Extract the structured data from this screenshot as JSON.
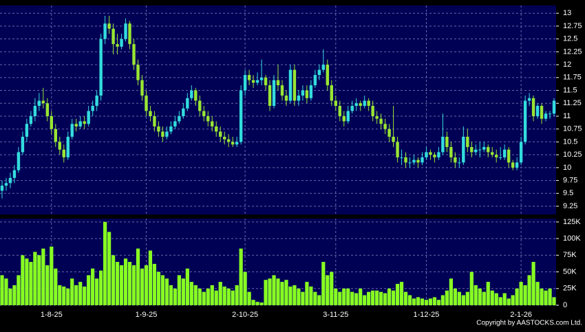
{
  "chart_data": [
    {
      "type": "candlestick",
      "up_color": "#33dddd",
      "down_color": "#99e633",
      "grid": true,
      "ylim": [
        9.09,
        13.15
      ],
      "yticks": [
        9.25,
        9.5,
        9.75,
        10,
        10.25,
        10.5,
        10.75,
        11,
        11.25,
        11.5,
        11.75,
        12,
        12.25,
        12.5,
        12.75,
        13
      ],
      "candles": [
        [
          9.55,
          9.75,
          9.4,
          9.65
        ],
        [
          9.65,
          9.8,
          9.55,
          9.7
        ],
        [
          9.7,
          9.9,
          9.6,
          9.8
        ],
        [
          9.8,
          10.05,
          9.7,
          9.95
        ],
        [
          9.95,
          10.4,
          9.9,
          10.3
        ],
        [
          10.3,
          10.7,
          10.25,
          10.6
        ],
        [
          10.6,
          10.95,
          10.5,
          10.85
        ],
        [
          10.85,
          11.1,
          10.8,
          11.0
        ],
        [
          11.0,
          11.35,
          10.9,
          11.2
        ],
        [
          11.2,
          11.45,
          11.1,
          11.3
        ],
        [
          11.3,
          11.55,
          11.15,
          11.25
        ],
        [
          11.25,
          11.35,
          10.9,
          11.0
        ],
        [
          11.0,
          11.1,
          10.65,
          10.75
        ],
        [
          10.75,
          10.85,
          10.4,
          10.5
        ],
        [
          10.5,
          10.6,
          10.25,
          10.35
        ],
        [
          10.35,
          10.45,
          10.1,
          10.2
        ],
        [
          10.2,
          10.7,
          10.15,
          10.6
        ],
        [
          10.6,
          10.95,
          10.55,
          10.85
        ],
        [
          10.85,
          10.95,
          10.7,
          10.8
        ],
        [
          10.8,
          11.0,
          10.75,
          10.9
        ],
        [
          10.9,
          11.0,
          10.75,
          10.85
        ],
        [
          10.85,
          11.2,
          10.8,
          11.1
        ],
        [
          11.1,
          11.3,
          11.0,
          11.2
        ],
        [
          11.2,
          11.5,
          11.1,
          11.4
        ],
        [
          11.4,
          12.6,
          11.3,
          12.5
        ],
        [
          12.5,
          12.95,
          12.4,
          12.8
        ],
        [
          12.8,
          12.95,
          12.6,
          12.7
        ],
        [
          12.7,
          12.8,
          12.2,
          12.4
        ],
        [
          12.4,
          12.6,
          12.2,
          12.35
        ],
        [
          12.35,
          12.6,
          12.3,
          12.5
        ],
        [
          12.5,
          12.9,
          12.45,
          12.8
        ],
        [
          12.8,
          12.85,
          12.3,
          12.4
        ],
        [
          12.4,
          12.5,
          11.9,
          12.0
        ],
        [
          12.0,
          12.1,
          11.6,
          11.7
        ],
        [
          11.7,
          11.8,
          11.3,
          11.4
        ],
        [
          11.4,
          11.5,
          11.0,
          11.1
        ],
        [
          11.1,
          11.2,
          10.9,
          11.0
        ],
        [
          11.0,
          11.1,
          10.7,
          10.8
        ],
        [
          10.8,
          10.9,
          10.6,
          10.7
        ],
        [
          10.7,
          10.8,
          10.5,
          10.6
        ],
        [
          10.6,
          10.8,
          10.55,
          10.7
        ],
        [
          10.7,
          10.9,
          10.65,
          10.8
        ],
        [
          10.8,
          11.0,
          10.75,
          10.9
        ],
        [
          10.9,
          11.1,
          10.85,
          11.0
        ],
        [
          11.0,
          11.25,
          10.95,
          11.15
        ],
        [
          11.15,
          11.45,
          11.1,
          11.35
        ],
        [
          11.35,
          11.6,
          11.3,
          11.5
        ],
        [
          11.5,
          11.55,
          11.2,
          11.3
        ],
        [
          11.3,
          11.4,
          11.0,
          11.1
        ],
        [
          11.1,
          11.2,
          10.9,
          11.0
        ],
        [
          11.0,
          11.1,
          10.8,
          10.9
        ],
        [
          10.9,
          11.0,
          10.7,
          10.8
        ],
        [
          10.8,
          10.9,
          10.6,
          10.7
        ],
        [
          10.7,
          10.8,
          10.5,
          10.6
        ],
        [
          10.6,
          10.7,
          10.45,
          10.55
        ],
        [
          10.55,
          10.65,
          10.4,
          10.5
        ],
        [
          10.5,
          10.6,
          10.4,
          10.45
        ],
        [
          10.45,
          10.6,
          10.4,
          10.5
        ],
        [
          10.5,
          11.6,
          10.45,
          11.5
        ],
        [
          11.5,
          11.9,
          11.4,
          11.8
        ],
        [
          11.8,
          11.9,
          11.6,
          11.7
        ],
        [
          11.7,
          11.8,
          11.55,
          11.65
        ],
        [
          11.65,
          11.85,
          11.6,
          11.7
        ],
        [
          11.7,
          12.1,
          11.6,
          11.75
        ],
        [
          11.75,
          11.8,
          11.5,
          11.6
        ],
        [
          11.6,
          11.7,
          11.1,
          11.2
        ],
        [
          11.2,
          11.8,
          11.15,
          11.7
        ],
        [
          11.7,
          12.0,
          11.5,
          11.6
        ],
        [
          11.6,
          11.7,
          11.3,
          11.4
        ],
        [
          11.4,
          11.5,
          11.2,
          11.3
        ],
        [
          11.3,
          12.0,
          11.25,
          11.9
        ],
        [
          11.9,
          12.0,
          11.2,
          11.3
        ],
        [
          11.3,
          11.5,
          11.2,
          11.4
        ],
        [
          11.4,
          11.6,
          11.3,
          11.5
        ],
        [
          11.5,
          11.6,
          11.25,
          11.35
        ],
        [
          11.35,
          11.7,
          11.3,
          11.6
        ],
        [
          11.6,
          11.9,
          11.55,
          11.8
        ],
        [
          11.8,
          12.0,
          11.7,
          11.9
        ],
        [
          11.9,
          12.3,
          11.85,
          12.0
        ],
        [
          12.0,
          12.1,
          11.5,
          11.6
        ],
        [
          11.6,
          11.7,
          11.2,
          11.3
        ],
        [
          11.3,
          11.4,
          11.1,
          11.2
        ],
        [
          11.2,
          11.3,
          10.9,
          11.0
        ],
        [
          11.0,
          11.1,
          10.8,
          10.9
        ],
        [
          10.9,
          11.2,
          10.85,
          11.1
        ],
        [
          11.1,
          11.3,
          11.05,
          11.2
        ],
        [
          11.2,
          11.35,
          11.1,
          11.25
        ],
        [
          11.25,
          11.3,
          11.1,
          11.2
        ],
        [
          11.2,
          11.4,
          11.15,
          11.3
        ],
        [
          11.3,
          11.35,
          11.1,
          11.2
        ],
        [
          11.2,
          11.3,
          10.9,
          11.0
        ],
        [
          11.0,
          11.1,
          10.85,
          10.95
        ],
        [
          10.95,
          11.05,
          10.75,
          10.85
        ],
        [
          10.85,
          10.95,
          10.65,
          10.75
        ],
        [
          10.75,
          10.85,
          10.5,
          10.6
        ],
        [
          10.6,
          11.2,
          10.4,
          10.5
        ],
        [
          10.5,
          10.6,
          10.1,
          10.2
        ],
        [
          10.2,
          10.35,
          10.05,
          10.2
        ],
        [
          10.2,
          10.3,
          10.0,
          10.1
        ],
        [
          10.1,
          10.2,
          10.0,
          10.1
        ],
        [
          10.1,
          10.25,
          10.05,
          10.15
        ],
        [
          10.15,
          10.2,
          10.0,
          10.1
        ],
        [
          10.1,
          10.3,
          10.05,
          10.2
        ],
        [
          10.2,
          10.4,
          10.15,
          10.3
        ],
        [
          10.3,
          10.35,
          10.15,
          10.25
        ],
        [
          10.25,
          10.3,
          10.1,
          10.2
        ],
        [
          10.2,
          10.4,
          10.15,
          10.3
        ],
        [
          10.3,
          11.05,
          10.25,
          10.6
        ],
        [
          10.6,
          10.7,
          10.3,
          10.4
        ],
        [
          10.4,
          10.5,
          10.1,
          10.2
        ],
        [
          10.2,
          10.3,
          10.0,
          10.1
        ],
        [
          10.1,
          10.2,
          10.0,
          10.1
        ],
        [
          10.1,
          10.8,
          10.05,
          10.6
        ],
        [
          10.6,
          10.75,
          10.3,
          10.4
        ],
        [
          10.4,
          10.5,
          10.2,
          10.3
        ],
        [
          10.3,
          10.45,
          10.25,
          10.35
        ],
        [
          10.35,
          10.5,
          10.2,
          10.35
        ],
        [
          10.35,
          10.5,
          10.3,
          10.4
        ],
        [
          10.4,
          10.45,
          10.2,
          10.3
        ],
        [
          10.3,
          10.4,
          10.2,
          10.25
        ],
        [
          10.25,
          10.35,
          10.1,
          10.2
        ],
        [
          10.2,
          10.4,
          10.15,
          10.2
        ],
        [
          10.2,
          10.45,
          10.15,
          10.35
        ],
        [
          10.35,
          10.4,
          10.0,
          10.1
        ],
        [
          10.1,
          10.15,
          9.95,
          10.0
        ],
        [
          10.0,
          10.2,
          9.95,
          10.1
        ],
        [
          10.1,
          10.6,
          10.05,
          10.5
        ],
        [
          10.5,
          11.4,
          10.45,
          11.3
        ],
        [
          11.3,
          11.45,
          11.2,
          11.35
        ],
        [
          11.35,
          11.4,
          10.9,
          11.0
        ],
        [
          11.0,
          11.25,
          10.95,
          11.2
        ],
        [
          11.2,
          11.25,
          10.85,
          10.95
        ],
        [
          10.95,
          11.1,
          10.9,
          11.05
        ],
        [
          11.05,
          11.1,
          10.95,
          11.05
        ],
        [
          11.05,
          11.35,
          11.0,
          11.3
        ]
      ]
    },
    {
      "type": "bar",
      "color": "#88ff22",
      "grid": true,
      "ylim": [
        0,
        130000
      ],
      "yticks": [
        0,
        {
          "value": 25000,
          "label": "25K"
        },
        {
          "value": 50000,
          "label": "50K"
        },
        {
          "value": 75000,
          "label": "75K"
        },
        {
          "value": 100000,
          "label": "100K"
        },
        {
          "value": 125000,
          "label": "125K"
        }
      ],
      "categories": [
        null,
        null,
        null,
        null,
        null,
        null,
        null,
        null,
        null,
        null,
        null,
        null,
        "1-8-25",
        null,
        null,
        null,
        null,
        null,
        null,
        null,
        null,
        null,
        null,
        null,
        null,
        null,
        null,
        null,
        null,
        null,
        null,
        null,
        null,
        null,
        null,
        "1-9-25",
        null,
        null,
        null,
        null,
        null,
        null,
        null,
        null,
        null,
        null,
        null,
        null,
        null,
        null,
        null,
        null,
        null,
        null,
        null,
        null,
        null,
        null,
        null,
        "2-10-25",
        null,
        null,
        null,
        null,
        null,
        null,
        null,
        null,
        null,
        null,
        null,
        null,
        null,
        null,
        null,
        null,
        null,
        null,
        null,
        null,
        null,
        "3-11-25",
        null,
        null,
        null,
        null,
        null,
        null,
        null,
        null,
        null,
        null,
        null,
        null,
        null,
        null,
        null,
        null,
        null,
        null,
        null,
        null,
        null,
        "1-12-25",
        null,
        null,
        null,
        null,
        null,
        null,
        null,
        null,
        null,
        null,
        null,
        null,
        null,
        null,
        null,
        null,
        null,
        null,
        null,
        null,
        null,
        null,
        "2-1-26",
        null,
        null,
        null,
        null,
        null,
        null,
        null,
        null
      ],
      "values": [
        45000,
        40000,
        25000,
        30000,
        45000,
        75000,
        70000,
        65000,
        80000,
        75000,
        85000,
        60000,
        88000,
        55000,
        30000,
        28000,
        25000,
        40000,
        30000,
        35000,
        28000,
        45000,
        55000,
        40000,
        52000,
        125000,
        110000,
        75000,
        65000,
        60000,
        70000,
        65000,
        60000,
        85000,
        55000,
        60000,
        82000,
        62000,
        50000,
        45000,
        40000,
        30000,
        25000,
        45000,
        40000,
        55000,
        35000,
        30000,
        25000,
        20000,
        25000,
        30000,
        22000,
        35000,
        28000,
        25000,
        22000,
        30000,
        85000,
        50000,
        20000,
        8000,
        5000,
        4000,
        38000,
        40000,
        45000,
        40000,
        35000,
        38000,
        28000,
        30000,
        25000,
        20000,
        35000,
        28000,
        20000,
        15000,
        65000,
        45000,
        50000,
        25000,
        20000,
        25000,
        25000,
        20000,
        18000,
        25000,
        15000,
        20000,
        22000,
        22000,
        20000,
        18000,
        25000,
        22000,
        32000,
        35000,
        20000,
        15000,
        10000,
        12000,
        10000,
        8000,
        10000,
        12000,
        8000,
        15000,
        22000,
        40000,
        25000,
        20000,
        15000,
        20000,
        50000,
        30000,
        25000,
        20000,
        35000,
        22000,
        18000,
        12000,
        18000,
        10000,
        15000,
        25000,
        35000,
        30000,
        45000,
        65000,
        35000,
        25000,
        22000,
        25000,
        12000
      ]
    }
  ],
  "copyright": "Copyright by AASTOCKS.com Ltd."
}
